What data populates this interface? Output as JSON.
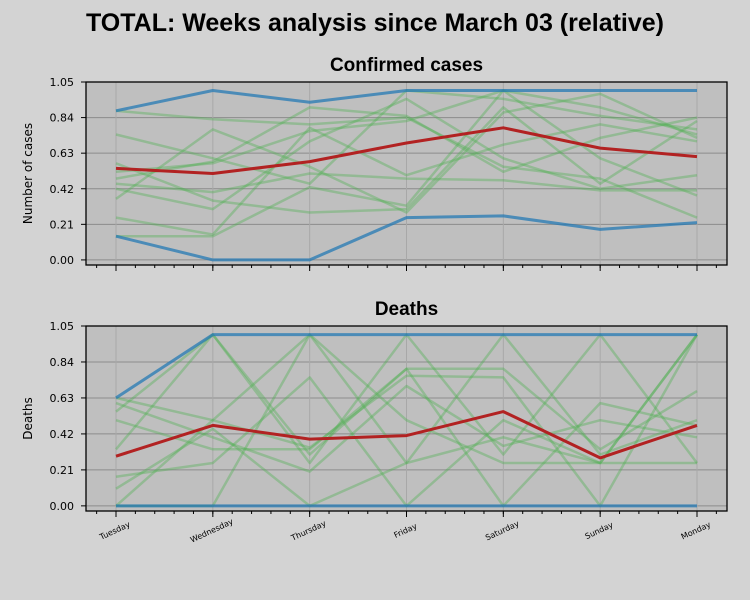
{
  "suptitle": "TOTAL: Weeks analysis since March 03 (relative)",
  "chart_data": [
    {
      "type": "line",
      "title": "Confirmed cases",
      "ylabel": "Number of cases",
      "xlabel": "",
      "categories": [
        "Tuesday",
        "Wednesday",
        "Thursday",
        "Friday",
        "Saturday",
        "Sunday",
        "Monday"
      ],
      "yticks": [
        "0.00",
        "0.21",
        "0.42",
        "0.63",
        "0.84",
        "1.05"
      ],
      "ylim": [
        -0.03,
        1.05
      ],
      "grid": true,
      "colors": {
        "weeks": "#4caf50",
        "max": "#1f77b4",
        "min": "#1f77b4",
        "mean": "#b22222"
      },
      "series": [
        {
          "role": "max",
          "values": [
            0.88,
            1.0,
            0.93,
            1.0,
            1.0,
            1.0,
            1.0
          ]
        },
        {
          "role": "min",
          "values": [
            0.14,
            0.0,
            0.0,
            0.25,
            0.26,
            0.18,
            0.22
          ]
        },
        {
          "role": "mean",
          "values": [
            0.54,
            0.51,
            0.58,
            0.69,
            0.78,
            0.66,
            0.61
          ]
        },
        {
          "role": "week",
          "values": [
            0.88,
            0.83,
            0.8,
            0.84,
            0.55,
            0.48,
            0.25
          ]
        },
        {
          "role": "week",
          "values": [
            0.74,
            0.6,
            0.45,
            1.0,
            0.95,
            0.85,
            0.77
          ]
        },
        {
          "role": "week",
          "values": [
            0.52,
            0.57,
            0.76,
            0.82,
            1.0,
            0.9,
            0.74
          ]
        },
        {
          "role": "week",
          "values": [
            0.45,
            0.4,
            0.51,
            0.48,
            0.47,
            0.41,
            0.41
          ]
        },
        {
          "role": "week",
          "values": [
            0.25,
            0.15,
            0.78,
            0.5,
            0.68,
            0.8,
            0.7
          ]
        },
        {
          "role": "week",
          "values": [
            0.14,
            0.14,
            0.43,
            0.32,
            1.0,
            0.6,
            0.38
          ]
        },
        {
          "role": "week",
          "values": [
            0.57,
            0.35,
            0.28,
            0.3,
            0.9,
            0.45,
            0.82
          ]
        },
        {
          "role": "week",
          "values": [
            0.36,
            0.77,
            0.55,
            0.28,
            0.87,
            0.98,
            0.72
          ]
        },
        {
          "role": "week",
          "values": [
            0.48,
            0.58,
            0.9,
            0.85,
            0.52,
            0.72,
            0.84
          ]
        },
        {
          "role": "week",
          "values": [
            0.42,
            0.3,
            0.7,
            0.95,
            0.6,
            0.42,
            0.5
          ]
        }
      ]
    },
    {
      "type": "line",
      "title": "Deaths",
      "ylabel": "Deaths",
      "xlabel": "",
      "categories": [
        "Tuesday",
        "Wednesday",
        "Thursday",
        "Friday",
        "Saturday",
        "Sunday",
        "Monday"
      ],
      "yticks": [
        "0.00",
        "0.21",
        "0.42",
        "0.63",
        "0.84",
        "1.05"
      ],
      "ylim": [
        -0.03,
        1.05
      ],
      "grid": true,
      "colors": {
        "weeks": "#4caf50",
        "max": "#1f77b4",
        "min": "#1f77b4",
        "mean": "#b22222"
      },
      "series": [
        {
          "role": "max",
          "values": [
            0.63,
            1.0,
            1.0,
            1.0,
            1.0,
            1.0,
            1.0
          ]
        },
        {
          "role": "min",
          "values": [
            0.0,
            0.0,
            0.0,
            0.0,
            0.0,
            0.0,
            0.0
          ]
        },
        {
          "role": "mean",
          "values": [
            0.29,
            0.47,
            0.39,
            0.41,
            0.55,
            0.28,
            0.47
          ]
        },
        {
          "role": "week",
          "values": [
            0.63,
            0.5,
            0.34,
            0.76,
            0.75,
            0.0,
            1.0
          ]
        },
        {
          "role": "week",
          "values": [
            0.0,
            0.5,
            1.0,
            0.25,
            1.0,
            0.3,
            0.5
          ]
        },
        {
          "role": "week",
          "values": [
            0.33,
            1.0,
            0.25,
            1.0,
            0.3,
            1.0,
            0.25
          ]
        },
        {
          "role": "week",
          "values": [
            0.5,
            0.33,
            0.33,
            0.8,
            0.8,
            0.33,
            0.67
          ]
        },
        {
          "role": "week",
          "values": [
            0.17,
            0.25,
            0.75,
            0.0,
            0.5,
            0.25,
            1.0
          ]
        },
        {
          "role": "week",
          "values": [
            0.0,
            0.0,
            1.0,
            0.5,
            0.25,
            0.25,
            0.25
          ]
        },
        {
          "role": "week",
          "values": [
            0.6,
            0.4,
            0.2,
            0.7,
            0.35,
            0.5,
            0.4
          ]
        },
        {
          "role": "week",
          "values": [
            0.1,
            0.45,
            0.0,
            0.25,
            0.4,
            0.25,
            1.0
          ]
        },
        {
          "role": "week",
          "values": [
            0.55,
            1.0,
            0.3,
            0.8,
            0.0,
            0.6,
            0.47
          ]
        }
      ]
    }
  ]
}
